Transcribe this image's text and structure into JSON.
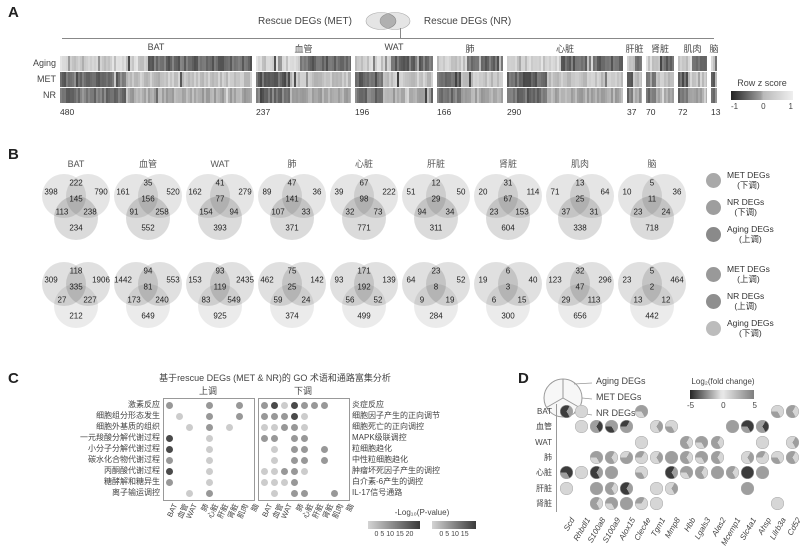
{
  "tissues": [
    "BAT",
    "血管",
    "WAT",
    "肺",
    "心脏",
    "肝脏",
    "肾脏",
    "肌肉",
    "脑"
  ],
  "panelA": {
    "label": "A",
    "header": {
      "left": "Rescue DEGs (MET)",
      "right": "Rescue DEGs (NR)"
    },
    "row_labels": [
      "Aging",
      "MET",
      "NR"
    ],
    "counts": [
      480,
      237,
      196,
      166,
      290,
      37,
      70,
      72,
      13
    ],
    "legend": {
      "title": "Row z score",
      "ticks": [
        "-1",
        "0",
        "1"
      ]
    }
  },
  "panelB": {
    "label": "B",
    "rows": [
      {
        "legend": [
          {
            "label": "MET DEGs",
            "dir": "(下调)",
            "color": "#a9a9a9"
          },
          {
            "label": "NR DEGs",
            "dir": "(下调)",
            "color": "#9e9e9e"
          },
          {
            "label": "Aging DEGs",
            "dir": "(上调)",
            "color": "#8a8a8a"
          }
        ],
        "venns": [
          [
            398,
            222,
            790,
            145,
            113,
            238,
            234
          ],
          [
            161,
            35,
            520,
            156,
            91,
            258,
            552
          ],
          [
            162,
            41,
            279,
            77,
            154,
            94,
            393
          ],
          [
            89,
            47,
            36,
            141,
            107,
            33,
            371
          ],
          [
            39,
            67,
            222,
            98,
            32,
            73,
            771
          ],
          [
            51,
            12,
            50,
            29,
            94,
            34,
            311
          ],
          [
            20,
            31,
            114,
            67,
            23,
            153,
            604
          ],
          [
            71,
            13,
            64,
            25,
            37,
            31,
            338
          ],
          [
            10,
            5,
            36,
            11,
            23,
            24,
            718
          ]
        ]
      },
      {
        "legend": [
          {
            "label": "MET DEGs",
            "dir": "(上调)",
            "color": "#999999"
          },
          {
            "label": "NR DEGs",
            "dir": "(上调)",
            "color": "#8f8f8f"
          },
          {
            "label": "Aging DEGs",
            "dir": "(下调)",
            "color": "#bcbcbc"
          }
        ],
        "venns": [
          [
            309,
            118,
            1906,
            335,
            27,
            227,
            212
          ],
          [
            1442,
            94,
            553,
            81,
            173,
            240,
            649
          ],
          [
            153,
            93,
            2435,
            119,
            83,
            549,
            925
          ],
          [
            462,
            75,
            142,
            25,
            59,
            24,
            374
          ],
          [
            93,
            171,
            139,
            192,
            56,
            52,
            499
          ],
          [
            64,
            23,
            52,
            8,
            9,
            19,
            284
          ],
          [
            19,
            6,
            40,
            3,
            6,
            15,
            300
          ],
          [
            123,
            32,
            296,
            47,
            29,
            113,
            656
          ],
          [
            23,
            5,
            464,
            2,
            13,
            12,
            442
          ]
        ]
      }
    ]
  },
  "panelC": {
    "label": "C",
    "title": "基于rescue DEGs (MET & NR)的 GO 术语和通路富集分析",
    "up_header": "上调",
    "down_header": "下调",
    "up_terms": [
      "激素反应",
      "细胞组分形态发生",
      "细胞外基质的组织",
      "一元羧酸分解代谢过程",
      "小分子分解代谢过程",
      "碳水化合物代谢过程",
      "丙酮酸代谢过程",
      "糖酵解和糖异生",
      "离子输运调控"
    ],
    "down_terms": [
      "炎症反应",
      "细胞因子产生的正向调节",
      "细胞死亡的正向调控",
      "MAPK级联调控",
      "粒细胞趋化",
      "中性粒细胞趋化",
      "肿瘤坏死因子产生的调控",
      "白介素-6产生的调控",
      "IL-17信号通路"
    ],
    "up_matrix": [
      [
        2,
        0,
        0,
        0,
        2,
        0,
        0,
        2,
        0
      ],
      [
        0,
        1,
        0,
        0,
        2,
        0,
        0,
        2,
        0
      ],
      [
        0,
        0,
        1,
        0,
        2,
        0,
        1,
        0,
        0
      ],
      [
        3,
        0,
        0,
        0,
        1,
        0,
        0,
        0,
        0
      ],
      [
        3,
        0,
        0,
        0,
        1,
        0,
        0,
        0,
        0
      ],
      [
        2,
        0,
        0,
        0,
        1,
        0,
        0,
        0,
        0
      ],
      [
        3,
        0,
        0,
        0,
        1,
        0,
        0,
        0,
        0
      ],
      [
        2,
        0,
        0,
        0,
        1,
        0,
        0,
        0,
        0
      ],
      [
        0,
        0,
        1,
        0,
        2,
        0,
        0,
        0,
        0
      ]
    ],
    "down_matrix": [
      [
        2,
        3,
        1,
        3,
        2,
        2,
        2,
        0,
        0
      ],
      [
        2,
        2,
        2,
        3,
        1,
        0,
        0,
        0,
        0
      ],
      [
        1,
        1,
        2,
        2,
        1,
        0,
        0,
        0,
        0
      ],
      [
        2,
        2,
        0,
        2,
        2,
        0,
        0,
        0,
        0
      ],
      [
        0,
        1,
        0,
        2,
        2,
        0,
        2,
        0,
        0
      ],
      [
        0,
        1,
        0,
        2,
        2,
        0,
        2,
        0,
        0
      ],
      [
        1,
        1,
        2,
        2,
        1,
        0,
        0,
        0,
        0
      ],
      [
        1,
        1,
        1,
        2,
        0,
        0,
        0,
        0,
        0
      ],
      [
        0,
        1,
        0,
        2,
        2,
        0,
        0,
        2,
        0
      ]
    ],
    "legend": {
      "title": "-Log₁₀(P-value)",
      "bar1_ticks": "0 5 10 15 20",
      "bar2_ticks": "0 5 10 15"
    }
  },
  "panelD": {
    "label": "D",
    "sectors": [
      "Aging DEGs",
      "MET DEGs",
      "NR DEGs"
    ],
    "colorbar": {
      "title": "Log₂(fold change)",
      "ticks": [
        "-5",
        "0",
        "5"
      ]
    },
    "rows": [
      "BAT",
      "血管",
      "WAT",
      "肺",
      "心脏",
      "肝脏",
      "肾脏"
    ],
    "genes": [
      "Scd",
      "Rhbdl1",
      "S100a8",
      "S100a9",
      "Alox15",
      "Clec4e",
      "Tgm1",
      "Mmp8",
      "Hbb",
      "Lgals3",
      "Alas2",
      "Mcemp1",
      "Slc4a1",
      "Ahsp",
      "Lilrb3a",
      "Cd52"
    ],
    "matrix": [
      [
        [
          3,
          2,
          3
        ],
        [
          1,
          1,
          1
        ],
        0,
        0,
        0,
        [
          2,
          2,
          1
        ],
        0,
        0,
        0,
        0,
        0,
        0,
        0,
        0,
        [
          1,
          1,
          2
        ],
        [
          2,
          1,
          2
        ]
      ],
      [
        0,
        [
          1,
          1,
          1
        ],
        [
          2,
          3,
          2
        ],
        [
          2,
          2,
          3
        ],
        [
          3,
          2,
          2
        ],
        0,
        [
          1,
          2,
          1
        ],
        [
          1,
          1,
          2
        ],
        0,
        0,
        0,
        [
          2,
          2,
          2
        ],
        [
          3,
          3,
          2
        ],
        [
          2,
          3,
          2
        ],
        0,
        0
      ],
      [
        0,
        0,
        0,
        0,
        0,
        [
          1,
          1,
          1
        ],
        0,
        0,
        [
          2,
          1,
          2
        ],
        [
          2,
          2,
          1
        ],
        [
          2,
          1,
          2
        ],
        0,
        0,
        [
          1,
          1,
          1
        ],
        0,
        [
          1,
          2,
          1
        ]
      ],
      [
        0,
        0,
        [
          2,
          2,
          1
        ],
        [
          2,
          1,
          2
        ],
        [
          1,
          2,
          2
        ],
        [
          2,
          1,
          1
        ],
        [
          1,
          2,
          1
        ],
        [
          2,
          2,
          2
        ],
        [
          2,
          1,
          2
        ],
        [
          2,
          2,
          1
        ],
        [
          2,
          1,
          2
        ],
        0,
        [
          1,
          2,
          1
        ],
        [
          2,
          1,
          1
        ],
        [
          1,
          1,
          2
        ],
        [
          2,
          1,
          2
        ]
      ],
      [
        [
          3,
          3,
          2
        ],
        [
          1,
          1,
          1
        ],
        [
          3,
          2,
          3
        ],
        [
          2,
          2,
          2
        ],
        0,
        [
          1,
          1,
          2
        ],
        0,
        [
          3,
          2,
          3
        ],
        [
          2,
          2,
          1
        ],
        [
          2,
          1,
          2
        ],
        [
          2,
          2,
          2
        ],
        [
          2,
          1,
          2
        ],
        [
          3,
          3,
          3
        ],
        [
          2,
          2,
          2
        ],
        0,
        0
      ],
      [
        [
          1,
          1,
          1
        ],
        0,
        [
          2,
          2,
          2
        ],
        [
          2,
          1,
          2
        ],
        [
          3,
          2,
          3
        ],
        0,
        [
          1,
          1,
          1
        ],
        [
          1,
          2,
          1
        ],
        0,
        0,
        0,
        0,
        [
          2,
          2,
          2
        ],
        0,
        0,
        0
      ],
      [
        0,
        0,
        [
          2,
          1,
          2
        ],
        [
          2,
          2,
          1
        ],
        [
          2,
          2,
          2
        ],
        [
          2,
          1,
          1
        ],
        [
          1,
          1,
          1
        ],
        0,
        0,
        0,
        0,
        0,
        0,
        0,
        [
          1,
          1,
          1
        ],
        0
      ]
    ]
  }
}
